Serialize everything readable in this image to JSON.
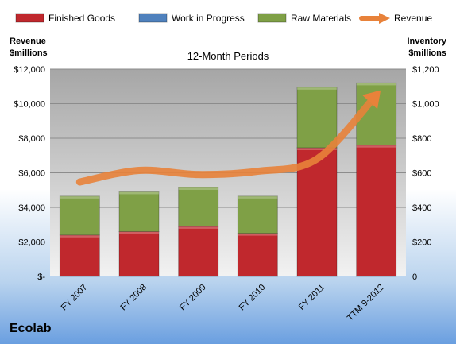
{
  "chart_data": {
    "type": "bar",
    "subtitle": "12-Month Periods",
    "categories": [
      "FY 2007",
      "FY 2008",
      "FY 2009",
      "FY 2010",
      "FY 2011",
      "TTM 9-2012"
    ],
    "series": [
      {
        "name": "Finished Goods",
        "type": "bar",
        "axis": "right",
        "color": "#c0282d",
        "values": [
          240,
          260,
          290,
          250,
          745,
          760
        ]
      },
      {
        "name": "Work in Progress",
        "type": "bar",
        "axis": "right",
        "color": "#4f81bd",
        "values": [
          0,
          0,
          0,
          0,
          0,
          0
        ]
      },
      {
        "name": "Raw Materials",
        "type": "bar",
        "axis": "right",
        "color": "#7fa046",
        "values": [
          225,
          230,
          225,
          215,
          350,
          360
        ]
      },
      {
        "name": "Revenue",
        "type": "line",
        "axis": "left",
        "color": "#e8823a",
        "values": [
          5470,
          6140,
          5900,
          6090,
          6800,
          10500
        ]
      }
    ],
    "left_axis": {
      "label_line1": "Revenue",
      "label_line2": "$millions",
      "ylim": [
        0,
        12000
      ],
      "ticks": [
        "$-",
        "$2,000",
        "$4,000",
        "$6,000",
        "$8,000",
        "$10,000",
        "$12,000"
      ]
    },
    "right_axis": {
      "label_line1": "Inventory",
      "label_line2": "$millions",
      "ylim": [
        0,
        1200
      ],
      "ticks": [
        "0",
        "$200",
        "$400",
        "$600",
        "$800",
        "$1,000",
        "$1,200"
      ]
    },
    "legend_position": "top",
    "grid": true
  },
  "company": "Ecolab"
}
